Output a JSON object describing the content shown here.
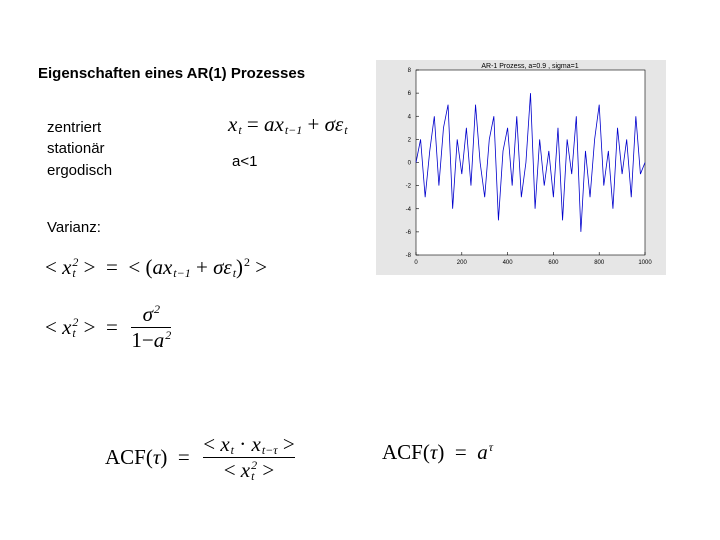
{
  "slide": {
    "title": "Eigenschaften eines AR(1) Prozesses",
    "properties": [
      "zentriert",
      "stationär",
      "ergodisch"
    ],
    "variance_label": "Varianz:",
    "condition": "a<1",
    "formulas": {
      "process": [
        {
          "t": "x",
          "sub": "t"
        },
        {
          "t": " = ",
          "roman": true
        },
        {
          "t": "a"
        },
        {
          "t": "x",
          "sub": "t−1"
        },
        {
          "t": " + ",
          "roman": true
        },
        {
          "t": "σ"
        },
        {
          "t": "ε",
          "sub": "t"
        }
      ],
      "variance_def": [
        {
          "t": "< ",
          "roman": true
        },
        {
          "t": "x",
          "sub": "t",
          "sup": "2"
        },
        {
          "t": " >  =  < (",
          "roman": true
        },
        {
          "t": "a"
        },
        {
          "t": "x",
          "sub": "t−1"
        },
        {
          "t": " + ",
          "roman": true
        },
        {
          "t": "σ"
        },
        {
          "t": "ε",
          "sub": "t"
        },
        {
          "t": ")",
          "sup": "2",
          "roman": true
        },
        {
          "t": " >",
          "roman": true
        }
      ],
      "variance_result": [
        {
          "t": "< ",
          "roman": true
        },
        {
          "t": "x",
          "sub": "t",
          "sup": "2"
        },
        {
          "t": " >  =  ",
          "roman": true
        },
        {
          "frac": {
            "num": [
              {
                "t": "σ",
                "sup": "2"
              }
            ],
            "den": [
              {
                "t": "1−",
                "roman": true
              },
              {
                "t": "a",
                "sup": "2"
              }
            ]
          }
        }
      ],
      "acf_def": [
        {
          "t": "ACF(",
          "roman": true
        },
        {
          "t": "τ"
        },
        {
          "t": ")  =  ",
          "roman": true
        },
        {
          "frac": {
            "num": [
              {
                "t": "< ",
                "roman": true
              },
              {
                "t": "x",
                "sub": "t"
              },
              {
                "t": " · ",
                "roman": true
              },
              {
                "t": "x",
                "sub": "t−τ"
              },
              {
                "t": " >",
                "roman": true
              }
            ],
            "den": [
              {
                "t": "< ",
                "roman": true
              },
              {
                "t": "x",
                "sub": "t",
                "sup": "2"
              },
              {
                "t": " >",
                "roman": true
              }
            ]
          }
        }
      ],
      "acf_result": [
        {
          "t": "ACF(",
          "roman": true
        },
        {
          "t": "τ"
        },
        {
          "t": ")  =  ",
          "roman": true
        },
        {
          "t": "a",
          "sup": "τ"
        }
      ]
    }
  },
  "chart_data": {
    "type": "line",
    "title": "AR-1 Prozess, a=0.9 , sigma=1",
    "x": [
      0,
      20,
      40,
      60,
      80,
      100,
      120,
      140,
      160,
      180,
      200,
      220,
      240,
      260,
      280,
      300,
      320,
      340,
      360,
      380,
      400,
      420,
      440,
      460,
      480,
      500,
      520,
      540,
      560,
      580,
      600,
      620,
      640,
      660,
      680,
      700,
      720,
      740,
      760,
      780,
      800,
      820,
      840,
      860,
      880,
      900,
      920,
      940,
      960,
      980,
      1000
    ],
    "series": [
      {
        "color": "#0000cc",
        "values": [
          0,
          2,
          -3,
          1,
          4,
          -2,
          3,
          5,
          -4,
          2,
          -1,
          3,
          -2,
          5,
          0,
          -3,
          2,
          4,
          -5,
          1,
          3,
          -2,
          4,
          -3,
          0,
          6,
          -4,
          2,
          -2,
          1,
          -3,
          3,
          -5,
          2,
          -1,
          4,
          -6,
          1,
          -3,
          2,
          5,
          -2,
          1,
          -4,
          3,
          -1,
          2,
          -3,
          4,
          -1,
          0
        ]
      }
    ],
    "xlim": [
      0,
      1000
    ],
    "xticks": [
      0,
      200,
      400,
      600,
      800,
      1000
    ],
    "ylim": [
      -8,
      8
    ],
    "yticks": [
      -8,
      -6,
      -4,
      -2,
      0,
      2,
      4,
      6,
      8
    ]
  }
}
